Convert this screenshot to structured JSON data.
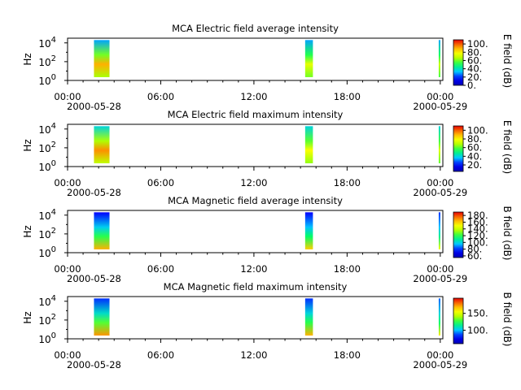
{
  "chart_data": [
    {
      "type": "heatmap",
      "title": "MCA  Electric field average intensity",
      "ylabel": "Hz",
      "colorbar_label": "E field (dB)",
      "colorbar_ticks": [
        "0.",
        "20.",
        "40.",
        "60.",
        "80.",
        "100."
      ],
      "colorbar_range": [
        0,
        110
      ],
      "x_ticks": [
        "00:00",
        "06:00",
        "12:00",
        "18:00",
        "00:00"
      ],
      "x_dates": [
        "2000-05-28",
        "2000-05-29"
      ],
      "xlim": [
        "2000-05-28 00:00",
        "2000-05-29 00:10"
      ],
      "y_ticks": [
        {
          "base": "10",
          "exp": "0"
        },
        {
          "base": "10",
          "exp": "2"
        },
        {
          "base": "10",
          "exp": "4"
        }
      ],
      "ylim_log10": [
        0,
        4.5
      ],
      "segments": [
        {
          "start_hour": 1.7,
          "end_hour": 2.7,
          "low_db": 65,
          "mid_db": 90,
          "high_db": 30
        },
        {
          "start_hour": 15.3,
          "end_hour": 15.8,
          "low_db": 60,
          "mid_db": 75,
          "high_db": 30
        },
        {
          "start_hour": 23.9,
          "end_hour": 24.0,
          "low_db": 55,
          "mid_db": 70,
          "high_db": 30
        }
      ]
    },
    {
      "type": "heatmap",
      "title": "MCA  Electric field maximum intensity",
      "ylabel": "Hz",
      "colorbar_label": "E field (dB)",
      "colorbar_ticks": [
        "20.",
        "40.",
        "60.",
        "80.",
        "100."
      ],
      "colorbar_range": [
        5,
        110
      ],
      "x_ticks": [
        "00:00",
        "06:00",
        "12:00",
        "18:00",
        "00:00"
      ],
      "x_dates": [
        "2000-05-28",
        "2000-05-29"
      ],
      "xlim": [
        "2000-05-28 00:00",
        "2000-05-29 00:10"
      ],
      "y_ticks": [
        {
          "base": "10",
          "exp": "0"
        },
        {
          "base": "10",
          "exp": "2"
        },
        {
          "base": "10",
          "exp": "4"
        }
      ],
      "ylim_log10": [
        0,
        4.5
      ],
      "segments": [
        {
          "start_hour": 1.7,
          "end_hour": 2.7,
          "low_db": 70,
          "mid_db": 95,
          "high_db": 40
        },
        {
          "start_hour": 15.3,
          "end_hour": 15.8,
          "low_db": 65,
          "mid_db": 80,
          "high_db": 40
        },
        {
          "start_hour": 23.9,
          "end_hour": 24.0,
          "low_db": 60,
          "mid_db": 75,
          "high_db": 40
        }
      ]
    },
    {
      "type": "heatmap",
      "title": "MCA  Magnetic field average intensity",
      "ylabel": "Hz",
      "colorbar_label": "B field (dB)",
      "colorbar_ticks": [
        "60.",
        "80.",
        "100.",
        "120.",
        "140.",
        "160.",
        "180."
      ],
      "colorbar_range": [
        55,
        190
      ],
      "x_ticks": [
        "00:00",
        "06:00",
        "12:00",
        "18:00",
        "00:00"
      ],
      "x_dates": [
        "2000-05-28",
        "2000-05-29"
      ],
      "xlim": [
        "2000-05-28 00:00",
        "2000-05-29 00:10"
      ],
      "y_ticks": [
        {
          "base": "10",
          "exp": "0"
        },
        {
          "base": "10",
          "exp": "2"
        },
        {
          "base": "10",
          "exp": "4"
        }
      ],
      "ylim_log10": [
        0,
        4.5
      ],
      "segments": [
        {
          "start_hour": 1.7,
          "end_hour": 2.7,
          "low_db": 165,
          "mid_db": 120,
          "high_db": 75
        },
        {
          "start_hour": 15.3,
          "end_hour": 15.8,
          "low_db": 160,
          "mid_db": 115,
          "high_db": 75
        },
        {
          "start_hour": 23.9,
          "end_hour": 24.0,
          "low_db": 150,
          "mid_db": 110,
          "high_db": 80
        }
      ]
    },
    {
      "type": "heatmap",
      "title": "MCA  Magnetic field maximum intensity",
      "ylabel": "Hz",
      "colorbar_label": "B field (dB)",
      "colorbar_ticks": [
        "100.",
        "150."
      ],
      "colorbar_range": [
        60,
        195
      ],
      "x_ticks": [
        "00:00",
        "06:00",
        "12:00",
        "18:00",
        "00:00"
      ],
      "x_dates": [
        "2000-05-28",
        "2000-05-29"
      ],
      "xlim": [
        "2000-05-28 00:00",
        "2000-05-29 00:10"
      ],
      "y_ticks": [
        {
          "base": "10",
          "exp": "0"
        },
        {
          "base": "10",
          "exp": "2"
        },
        {
          "base": "10",
          "exp": "4"
        }
      ],
      "ylim_log10": [
        0,
        4.5
      ],
      "segments": [
        {
          "start_hour": 1.7,
          "end_hour": 2.7,
          "low_db": 175,
          "mid_db": 130,
          "high_db": 85
        },
        {
          "start_hour": 15.3,
          "end_hour": 15.8,
          "low_db": 170,
          "mid_db": 125,
          "high_db": 85
        },
        {
          "start_hour": 23.9,
          "end_hour": 24.0,
          "low_db": 160,
          "mid_db": 120,
          "high_db": 90
        }
      ]
    }
  ]
}
